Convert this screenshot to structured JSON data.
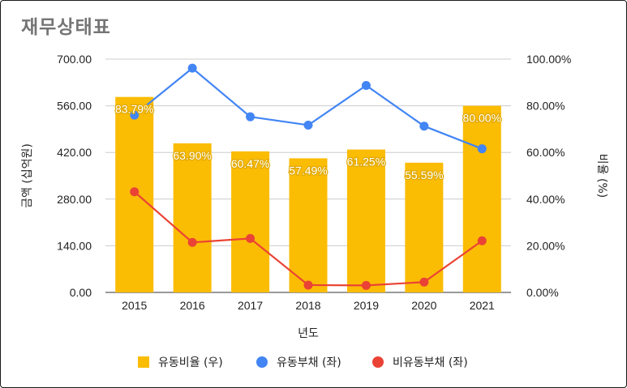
{
  "title": "재무상태표",
  "chart_data": {
    "type": "bar",
    "title": "재무상태표",
    "xlabel": "년도",
    "ylabel_left": "금액 (십억원)",
    "ylabel_right": "비율 (%)",
    "categories": [
      "2015",
      "2016",
      "2017",
      "2018",
      "2019",
      "2020",
      "2021"
    ],
    "y_left_ticks": [
      "0.00",
      "140.00",
      "280.00",
      "420.00",
      "560.00",
      "700.00"
    ],
    "y_right_ticks": [
      "0.00%",
      "20.00%",
      "40.00%",
      "60.00%",
      "80.00%",
      "100.00%"
    ],
    "ylim_left": [
      0,
      700
    ],
    "ylim_right": [
      0,
      100
    ],
    "grid": true,
    "legend_position": "bottom",
    "series": [
      {
        "name": "유동비율 (우)",
        "type": "bar",
        "axis": "right",
        "color": "#fbbc04",
        "values": [
          83.79,
          63.9,
          60.47,
          57.49,
          61.25,
          55.59,
          80.0
        ],
        "labels": [
          "83.79%",
          "63.90%",
          "60.47%",
          "57.49%",
          "61.25%",
          "55.59%",
          "80.00%"
        ]
      },
      {
        "name": "유동부채 (좌)",
        "type": "line",
        "axis": "left",
        "color": "#4285f4",
        "values": [
          532,
          673,
          527,
          502,
          621,
          499,
          431
        ]
      },
      {
        "name": "비유동부채 (좌)",
        "type": "line",
        "axis": "left",
        "color": "#ea4335",
        "values": [
          302,
          150,
          162,
          22,
          21,
          31,
          155
        ]
      }
    ]
  }
}
